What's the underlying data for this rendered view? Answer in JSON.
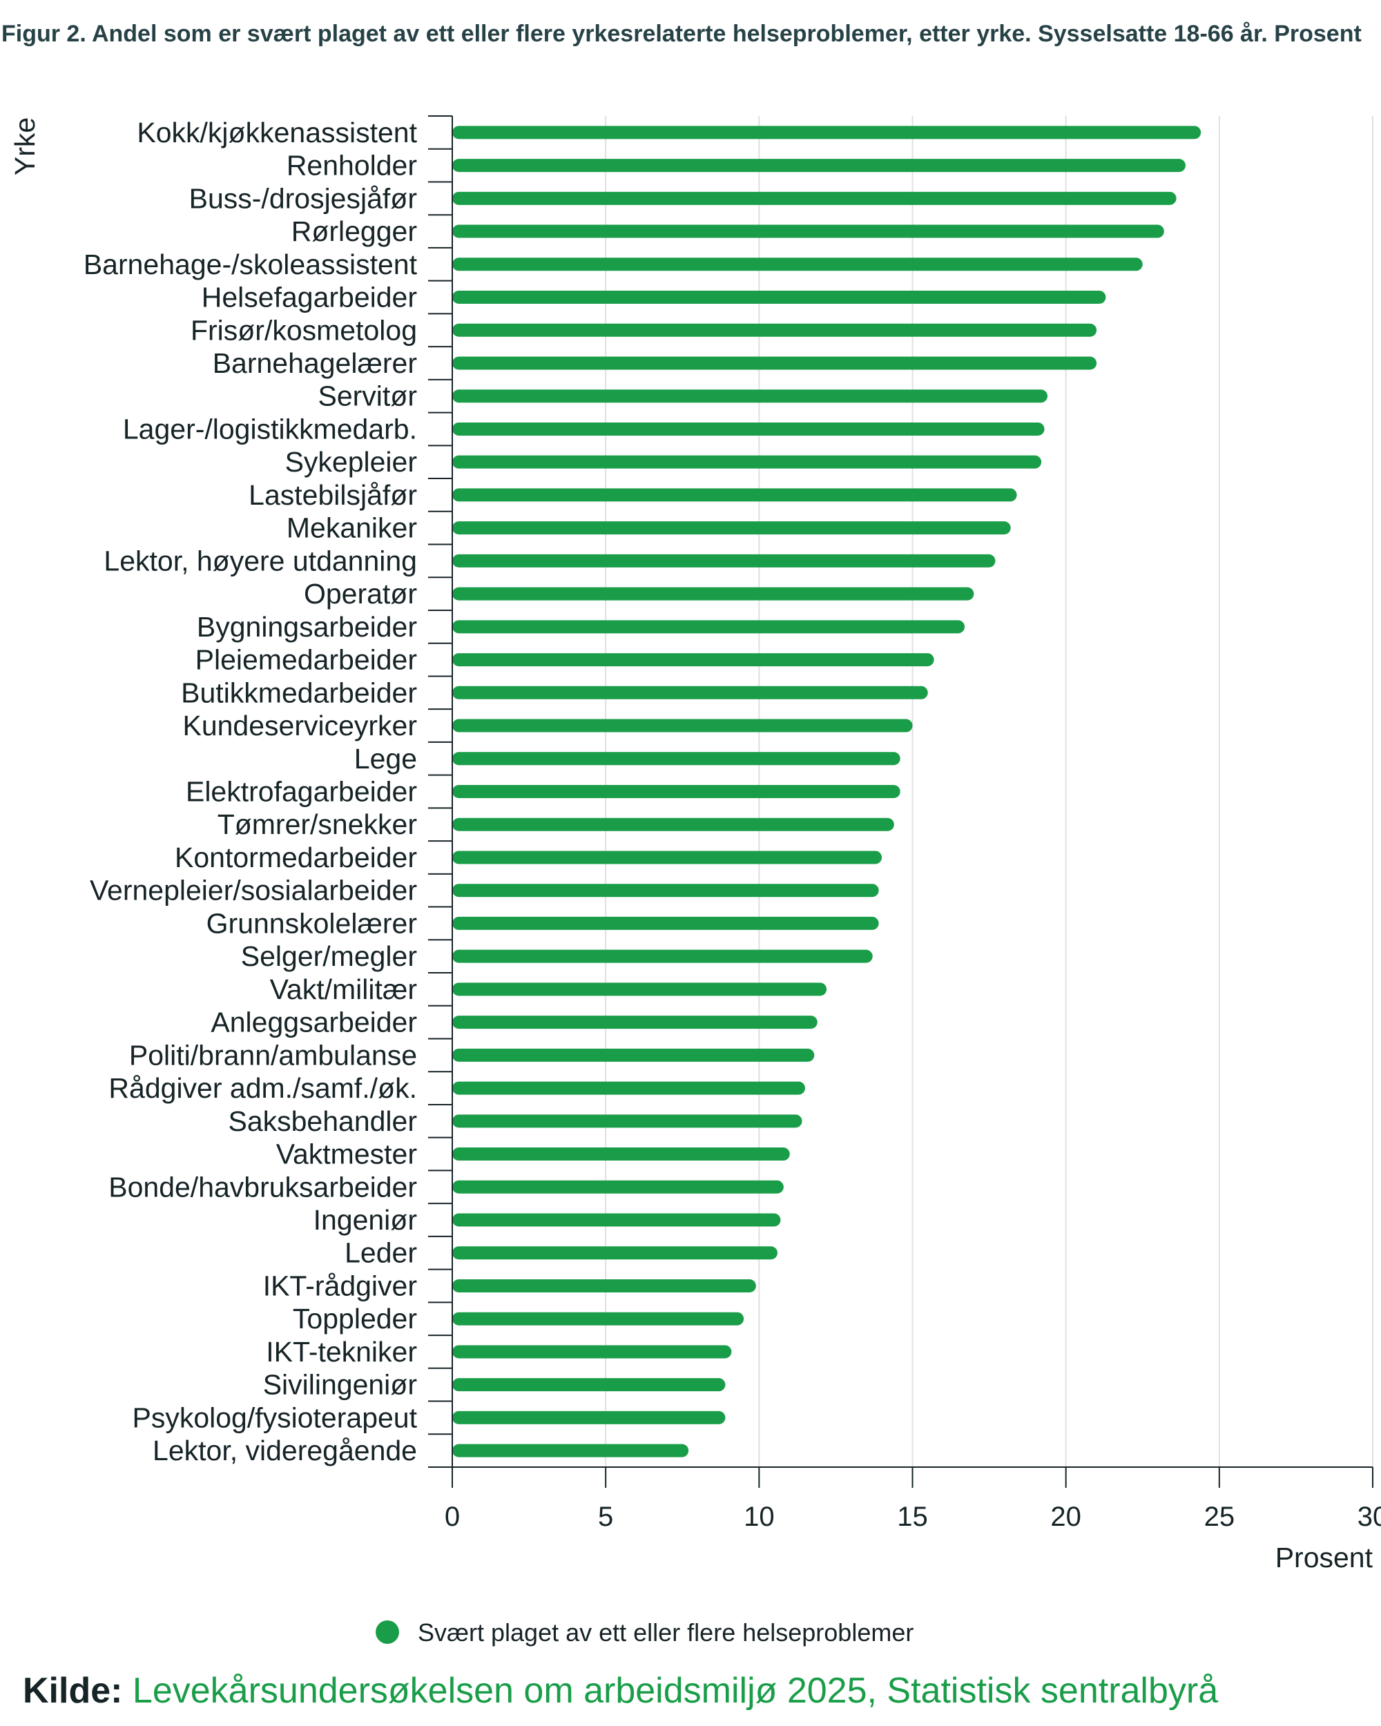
{
  "figure_title": "Figur 2. Andel som er svært plaget av ett eller flere yrkesrelaterte helseproblemer, etter yrke. Sysselsatte 18-66 år. Prosent",
  "source": {
    "prefix": "Kilde:",
    "text": "Levekårsundersøkelsen om arbeidsmiljø 2025, Statistisk sentralbyrå"
  },
  "colors": {
    "bar": "#1a9d49",
    "grid": "#e0e0e0",
    "axis": "#162327",
    "text": "#162327"
  },
  "chart_data": {
    "type": "bar",
    "orientation": "horizontal",
    "title": "Figur 2. Andel som er svært plaget av ett eller flere yrkesrelaterte helseproblemer, etter yrke. Sysselsatte 18-66 år. Prosent",
    "xlabel": "Prosent",
    "ylabel": "Yrke",
    "xlim": [
      0,
      30
    ],
    "xticks": [
      0,
      5,
      10,
      15,
      20,
      25,
      30
    ],
    "grid": true,
    "legend_position": "bottom",
    "categories": [
      "Kokk/kjøkkenassistent",
      "Renholder",
      "Buss-/drosjesjåfør",
      "Rørlegger",
      "Barnehage-/skoleassistent",
      "Helsefagarbeider",
      "Frisør/kosmetolog",
      "Barnehagelærer",
      "Servitør",
      "Lager-/logistikkmedarb.",
      "Sykepleier",
      "Lastebilsjåfør",
      "Mekaniker",
      "Lektor, høyere utdanning",
      "Operatør",
      "Bygningsarbeider",
      "Pleiemedarbeider",
      "Butikkmedarbeider",
      "Kundeserviceyrker",
      "Lege",
      "Elektrofagarbeider",
      "Tømrer/snekker",
      "Kontormedarbeider",
      "Vernepleier/sosialarbeider",
      "Grunnskolelærer",
      "Selger/megler",
      "Vakt/militær",
      "Anleggsarbeider",
      "Politi/brann/ambulanse",
      "Rådgiver adm./samf./øk.",
      "Saksbehandler",
      "Vaktmester",
      "Bonde/havbruksarbeider",
      "Ingeniør",
      "Leder",
      "IKT-rådgiver",
      "Toppleder",
      "IKT-tekniker",
      "Sivilingeniør",
      "Psykolog/fysioterapeut",
      "Lektor, videregående"
    ],
    "series": [
      {
        "name": "Svært plaget av ett eller flere helseproblemer",
        "color": "#1a9d49",
        "values": [
          24.4,
          23.9,
          23.6,
          23.2,
          22.5,
          21.3,
          21.0,
          21.0,
          19.4,
          19.3,
          19.2,
          18.4,
          18.2,
          17.7,
          17.0,
          16.7,
          15.7,
          15.5,
          15.0,
          14.6,
          14.6,
          14.4,
          14.0,
          13.9,
          13.9,
          13.7,
          12.2,
          11.9,
          11.8,
          11.5,
          11.4,
          11.0,
          10.8,
          10.7,
          10.6,
          9.9,
          9.5,
          9.1,
          8.9,
          8.9,
          7.7
        ]
      }
    ]
  }
}
